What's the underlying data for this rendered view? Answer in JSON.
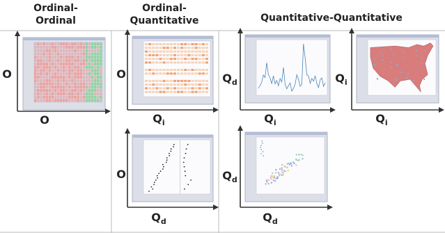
{
  "columns": [
    {
      "lines": [
        "Ordinal-",
        "Ordinal"
      ]
    },
    {
      "lines": [
        "Ordinal-",
        "Quantitative"
      ]
    },
    {
      "lines": [
        "Quantitative-Quantitative"
      ]
    }
  ],
  "panels": [
    {
      "y_label": {
        "main": "O"
      },
      "x_label": {
        "main": "O"
      }
    },
    {
      "y_label": {
        "main": "O"
      },
      "x_label": {
        "main": "Q",
        "sub": "i"
      }
    },
    {
      "y_label": {
        "main": "O"
      },
      "x_label": {
        "main": "Q",
        "sub": "d"
      }
    },
    {
      "y_label": {
        "main": "Q",
        "sub": "d"
      },
      "x_label": {
        "main": "Q",
        "sub": "i"
      }
    },
    {
      "y_label": {
        "main": "Q",
        "sub": "i"
      },
      "x_label": {
        "main": "Q",
        "sub": "i"
      }
    },
    {
      "y_label": {
        "main": "Q",
        "sub": "d"
      },
      "x_label": {
        "main": "Q",
        "sub": "d"
      }
    }
  ]
}
